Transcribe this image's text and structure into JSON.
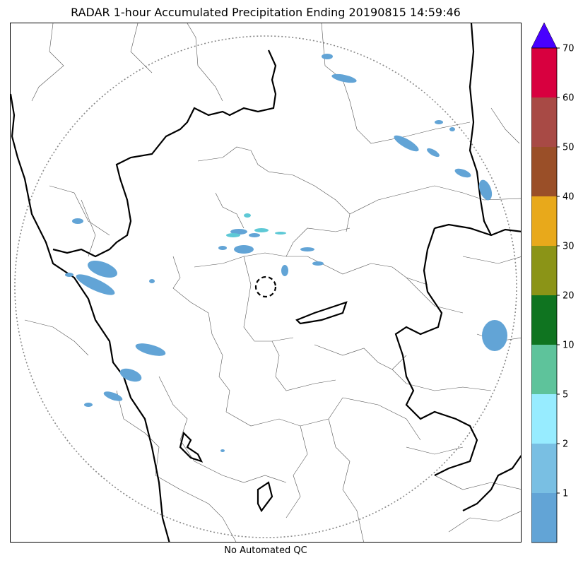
{
  "title": "RADAR 1-hour Accumulated Precipitation Ending 20190815 14:59:46",
  "footer": "No Automated QC",
  "colorbar": {
    "labels": [
      "1",
      "2",
      "5",
      "10",
      "20",
      "30",
      "40",
      "50",
      "60",
      "70"
    ],
    "colors": [
      "#62a4d6",
      "#79bfe3",
      "#97ecff",
      "#5ec39b",
      "#0f7420",
      "#8b9417",
      "#e8a91b",
      "#9a4f28",
      "#a84a45",
      "#d8003f"
    ],
    "extend_color": "#4800ff"
  }
}
